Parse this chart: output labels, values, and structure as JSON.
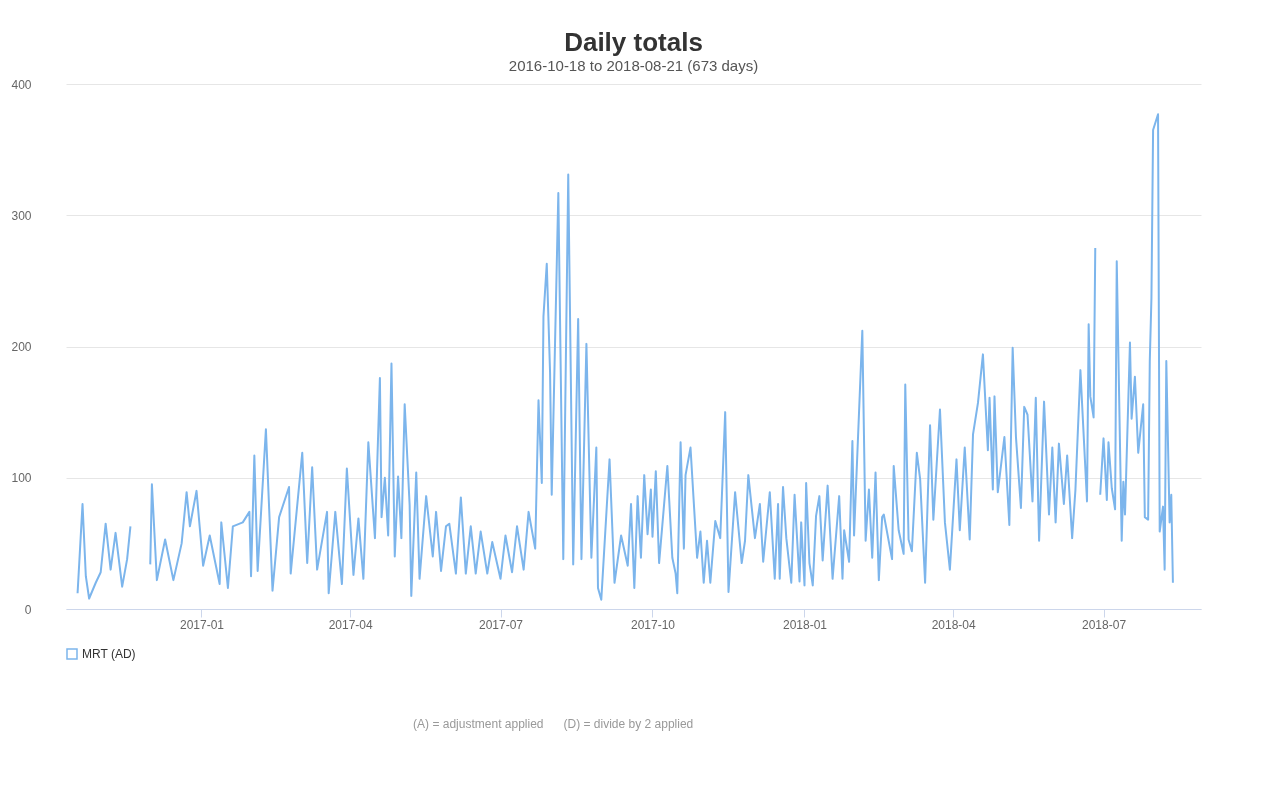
{
  "chart_data": {
    "type": "line",
    "title": "Daily totals",
    "subtitle": "2016-10-18 to 2018-08-21 (673 days)",
    "x": [
      "2016-10-18",
      "2016-10-21",
      "2016-10-23",
      "2016-10-25",
      "2016-10-29",
      "2016-11-01",
      "2016-11-04",
      "2016-11-07",
      "2016-11-10",
      "2016-11-14",
      "2016-11-17",
      "2016-11-19",
      "2016-11-25",
      "2016-12-01",
      "2016-12-02",
      "2016-12-05",
      "2016-12-10",
      "2016-12-15",
      "2016-12-20",
      "2016-12-23",
      "2016-12-25",
      "2016-12-29",
      "2017-01-02",
      "2017-01-06",
      "2017-01-12",
      "2017-01-13",
      "2017-01-17",
      "2017-01-20",
      "2017-01-26",
      "2017-01-30",
      "2017-01-31",
      "2017-02-02",
      "2017-02-04",
      "2017-02-09",
      "2017-02-13",
      "2017-02-17",
      "2017-02-23",
      "2017-02-24",
      "2017-03-03",
      "2017-03-06",
      "2017-03-09",
      "2017-03-12",
      "2017-03-18",
      "2017-03-19",
      "2017-03-23",
      "2017-03-27",
      "2017-03-30",
      "2017-04-03",
      "2017-04-06",
      "2017-04-09",
      "2017-04-12",
      "2017-04-16",
      "2017-04-19",
      "2017-04-20",
      "2017-04-22",
      "2017-04-24",
      "2017-04-26",
      "2017-04-28",
      "2017-04-30",
      "2017-05-02",
      "2017-05-04",
      "2017-05-07",
      "2017-05-08",
      "2017-05-11",
      "2017-05-13",
      "2017-05-17",
      "2017-05-21",
      "2017-05-23",
      "2017-05-26",
      "2017-05-29",
      "2017-05-31",
      "2017-06-04",
      "2017-06-07",
      "2017-06-10",
      "2017-06-13",
      "2017-06-16",
      "2017-06-19",
      "2017-06-23",
      "2017-06-26",
      "2017-07-01",
      "2017-07-04",
      "2017-07-08",
      "2017-07-11",
      "2017-07-15",
      "2017-07-18",
      "2017-07-22",
      "2017-07-24",
      "2017-07-26",
      "2017-07-27",
      "2017-07-29",
      "2017-07-31",
      "2017-08-01",
      "2017-08-05",
      "2017-08-08",
      "2017-08-11",
      "2017-08-14",
      "2017-08-17",
      "2017-08-19",
      "2017-08-22",
      "2017-08-25",
      "2017-08-28",
      "2017-08-29",
      "2017-08-31",
      "2017-09-05",
      "2017-09-08",
      "2017-09-12",
      "2017-09-16",
      "2017-09-18",
      "2017-09-20",
      "2017-09-22",
      "2017-09-24",
      "2017-09-26",
      "2017-09-28",
      "2017-09-30",
      "2017-10-01",
      "2017-10-03",
      "2017-10-05",
      "2017-10-10",
      "2017-10-13",
      "2017-10-15",
      "2017-10-16",
      "2017-10-18",
      "2017-10-20",
      "2017-10-21",
      "2017-10-24",
      "2017-10-28",
      "2017-10-30",
      "2017-11-01",
      "2017-11-03",
      "2017-11-05",
      "2017-11-08",
      "2017-11-11",
      "2017-11-14",
      "2017-11-16",
      "2017-11-20",
      "2017-11-24",
      "2017-11-26",
      "2017-11-28",
      "2017-12-02",
      "2017-12-05",
      "2017-12-07",
      "2017-12-11",
      "2017-12-14",
      "2017-12-16",
      "2017-12-17",
      "2017-12-19",
      "2017-12-21",
      "2017-12-24",
      "2017-12-26",
      "2017-12-29",
      "2017-12-30",
      "2018-01-01",
      "2018-01-02",
      "2018-01-04",
      "2018-01-06",
      "2018-01-08",
      "2018-01-10",
      "2018-01-12",
      "2018-01-15",
      "2018-01-18",
      "2018-01-22",
      "2018-01-24",
      "2018-01-25",
      "2018-01-28",
      "2018-01-30",
      "2018-01-31",
      "2018-02-05",
      "2018-02-07",
      "2018-02-09",
      "2018-02-11",
      "2018-02-13",
      "2018-02-15",
      "2018-02-17",
      "2018-02-18",
      "2018-02-23",
      "2018-02-24",
      "2018-02-27",
      "2018-03-02",
      "2018-03-03",
      "2018-03-05",
      "2018-03-07",
      "2018-03-10",
      "2018-03-12",
      "2018-03-15",
      "2018-03-18",
      "2018-03-20",
      "2018-03-24",
      "2018-03-27",
      "2018-03-30",
      "2018-04-03",
      "2018-04-05",
      "2018-04-08",
      "2018-04-11",
      "2018-04-13",
      "2018-04-16",
      "2018-04-19",
      "2018-04-22",
      "2018-04-23",
      "2018-04-25",
      "2018-04-26",
      "2018-04-28",
      "2018-05-02",
      "2018-05-05",
      "2018-05-07",
      "2018-05-09",
      "2018-05-12",
      "2018-05-14",
      "2018-05-16",
      "2018-05-19",
      "2018-05-21",
      "2018-05-23",
      "2018-05-26",
      "2018-05-29",
      "2018-05-31",
      "2018-06-02",
      "2018-06-04",
      "2018-06-07",
      "2018-06-09",
      "2018-06-12",
      "2018-06-14",
      "2018-06-17",
      "2018-06-21",
      "2018-06-22",
      "2018-06-23",
      "2018-06-25",
      "2018-06-26",
      "2018-06-27",
      "2018-06-29",
      "2018-07-01",
      "2018-07-03",
      "2018-07-04",
      "2018-07-06",
      "2018-07-08",
      "2018-07-09",
      "2018-07-12",
      "2018-07-13",
      "2018-07-14",
      "2018-07-17",
      "2018-07-18",
      "2018-07-20",
      "2018-07-22",
      "2018-07-25",
      "2018-07-26",
      "2018-07-28",
      "2018-07-29",
      "2018-07-30",
      "2018-07-31",
      "2018-08-03",
      "2018-08-04",
      "2018-08-06",
      "2018-08-07",
      "2018-08-08",
      "2018-08-10",
      "2018-08-11",
      "2018-08-12"
    ],
    "series": [
      {
        "name": "MRT (AD)",
        "color": "#7cb5ec",
        "values": [
          12,
          80,
          25,
          8,
          20,
          28,
          65,
          30,
          58,
          17,
          38,
          63,
          null,
          34,
          95,
          22,
          53,
          22,
          50,
          89,
          63,
          90,
          33,
          56,
          19,
          66,
          16,
          63,
          66,
          74,
          25,
          117,
          29,
          137,
          14,
          70,
          93,
          27,
          119,
          35,
          108,
          30,
          74,
          12,
          74,
          19,
          107,
          26,
          69,
          23,
          127,
          54,
          176,
          70,
          100,
          56,
          187,
          40,
          101,
          54,
          156,
          79,
          10,
          104,
          23,
          86,
          40,
          74,
          29,
          63,
          65,
          27,
          85,
          27,
          63,
          27,
          59,
          27,
          51,
          23,
          56,
          28,
          63,
          30,
          74,
          46,
          159,
          96,
          223,
          263,
          180,
          87,
          317,
          38,
          331,
          34,
          221,
          38,
          202,
          39,
          123,
          16,
          7,
          114,
          20,
          56,
          33,
          80,
          16,
          86,
          39,
          102,
          57,
          91,
          55,
          105,
          35,
          109,
          39,
          27,
          12,
          127,
          46,
          102,
          123,
          39,
          59,
          20,
          52,
          20,
          67,
          54,
          150,
          13,
          89,
          35,
          52,
          102,
          54,
          80,
          36,
          89,
          23,
          80,
          23,
          93,
          54,
          20,
          87,
          21,
          66,
          18,
          96,
          35,
          18,
          71,
          86,
          37,
          94,
          23,
          86,
          23,
          60,
          36,
          128,
          56,
          212,
          52,
          91,
          39,
          104,
          22,
          70,
          72,
          38,
          109,
          60,
          42,
          171,
          53,
          44,
          119,
          99,
          20,
          140,
          68,
          152,
          66,
          30,
          114,
          60,
          123,
          53,
          133,
          157,
          194,
          121,
          161,
          91,
          162,
          89,
          131,
          64,
          199,
          131,
          77,
          154,
          148,
          82,
          161,
          52,
          158,
          72,
          123,
          66,
          126,
          80,
          117,
          54,
          91,
          182,
          82,
          217,
          162,
          146,
          275,
          null,
          87,
          130,
          83,
          127,
          92,
          76,
          265,
          52,
          97,
          72,
          203,
          145,
          177,
          119,
          156,
          70,
          68,
          189,
          237,
          365,
          377,
          59,
          78,
          30,
          189,
          66,
          87,
          20
        ]
      }
    ],
    "xlim": [
      "2016-10-11",
      "2018-08-29"
    ],
    "xticks": [
      "2017-01",
      "2017-04",
      "2017-07",
      "2017-10",
      "2018-01",
      "2018-04",
      "2018-07"
    ],
    "ylim": [
      0,
      400
    ],
    "yticks": [
      0,
      100,
      200,
      300,
      400
    ],
    "grid": "y",
    "legend": "bottom",
    "marker": "none",
    "line_style": "solid",
    "annotations": [
      "(A) = adjustment applied",
      "(D) = divide by 2 applied"
    ]
  }
}
